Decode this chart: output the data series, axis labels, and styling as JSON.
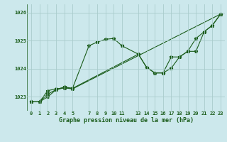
{
  "title": "Graphe pression niveau de la mer (hPa)",
  "background_color": "#cce8ec",
  "grid_color": "#aacccc",
  "line_color": "#1a5c1a",
  "ylim": [
    1022.5,
    1026.3
  ],
  "xlim": [
    -0.5,
    23.5
  ],
  "yticks": [
    1023,
    1024,
    1025,
    1026
  ],
  "xticks": [
    0,
    1,
    2,
    3,
    4,
    5,
    7,
    8,
    9,
    10,
    11,
    13,
    14,
    15,
    16,
    17,
    18,
    19,
    20,
    21,
    22,
    23
  ],
  "series1": [
    [
      0,
      1022.82
    ],
    [
      1,
      1022.82
    ],
    [
      2,
      1023.0
    ],
    [
      3,
      1023.25
    ],
    [
      4,
      1023.35
    ],
    [
      5,
      1023.3
    ],
    [
      7,
      1024.82
    ],
    [
      8,
      1024.95
    ],
    [
      9,
      1025.05
    ],
    [
      10,
      1025.08
    ],
    [
      11,
      1024.82
    ],
    [
      13,
      1024.52
    ],
    [
      14,
      1024.05
    ],
    [
      15,
      1023.85
    ],
    [
      16,
      1023.85
    ],
    [
      17,
      1024.02
    ],
    [
      18,
      1024.42
    ],
    [
      19,
      1024.62
    ],
    [
      20,
      1025.08
    ],
    [
      21,
      1025.32
    ],
    [
      22,
      1025.55
    ],
    [
      23,
      1025.95
    ]
  ],
  "series2": [
    [
      0,
      1022.82
    ],
    [
      1,
      1022.82
    ],
    [
      2,
      1023.22
    ],
    [
      3,
      1023.28
    ],
    [
      4,
      1023.32
    ],
    [
      5,
      1023.3
    ],
    [
      13,
      1024.52
    ],
    [
      14,
      1024.05
    ],
    [
      15,
      1023.85
    ],
    [
      16,
      1023.85
    ],
    [
      17,
      1024.42
    ],
    [
      18,
      1024.42
    ],
    [
      19,
      1024.62
    ],
    [
      20,
      1024.62
    ],
    [
      21,
      1025.32
    ],
    [
      22,
      1025.55
    ],
    [
      23,
      1025.95
    ]
  ],
  "series3": [
    [
      0,
      1022.82
    ],
    [
      1,
      1022.82
    ],
    [
      2,
      1023.1
    ],
    [
      3,
      1023.25
    ],
    [
      4,
      1023.32
    ],
    [
      5,
      1023.28
    ],
    [
      23,
      1025.95
    ]
  ]
}
